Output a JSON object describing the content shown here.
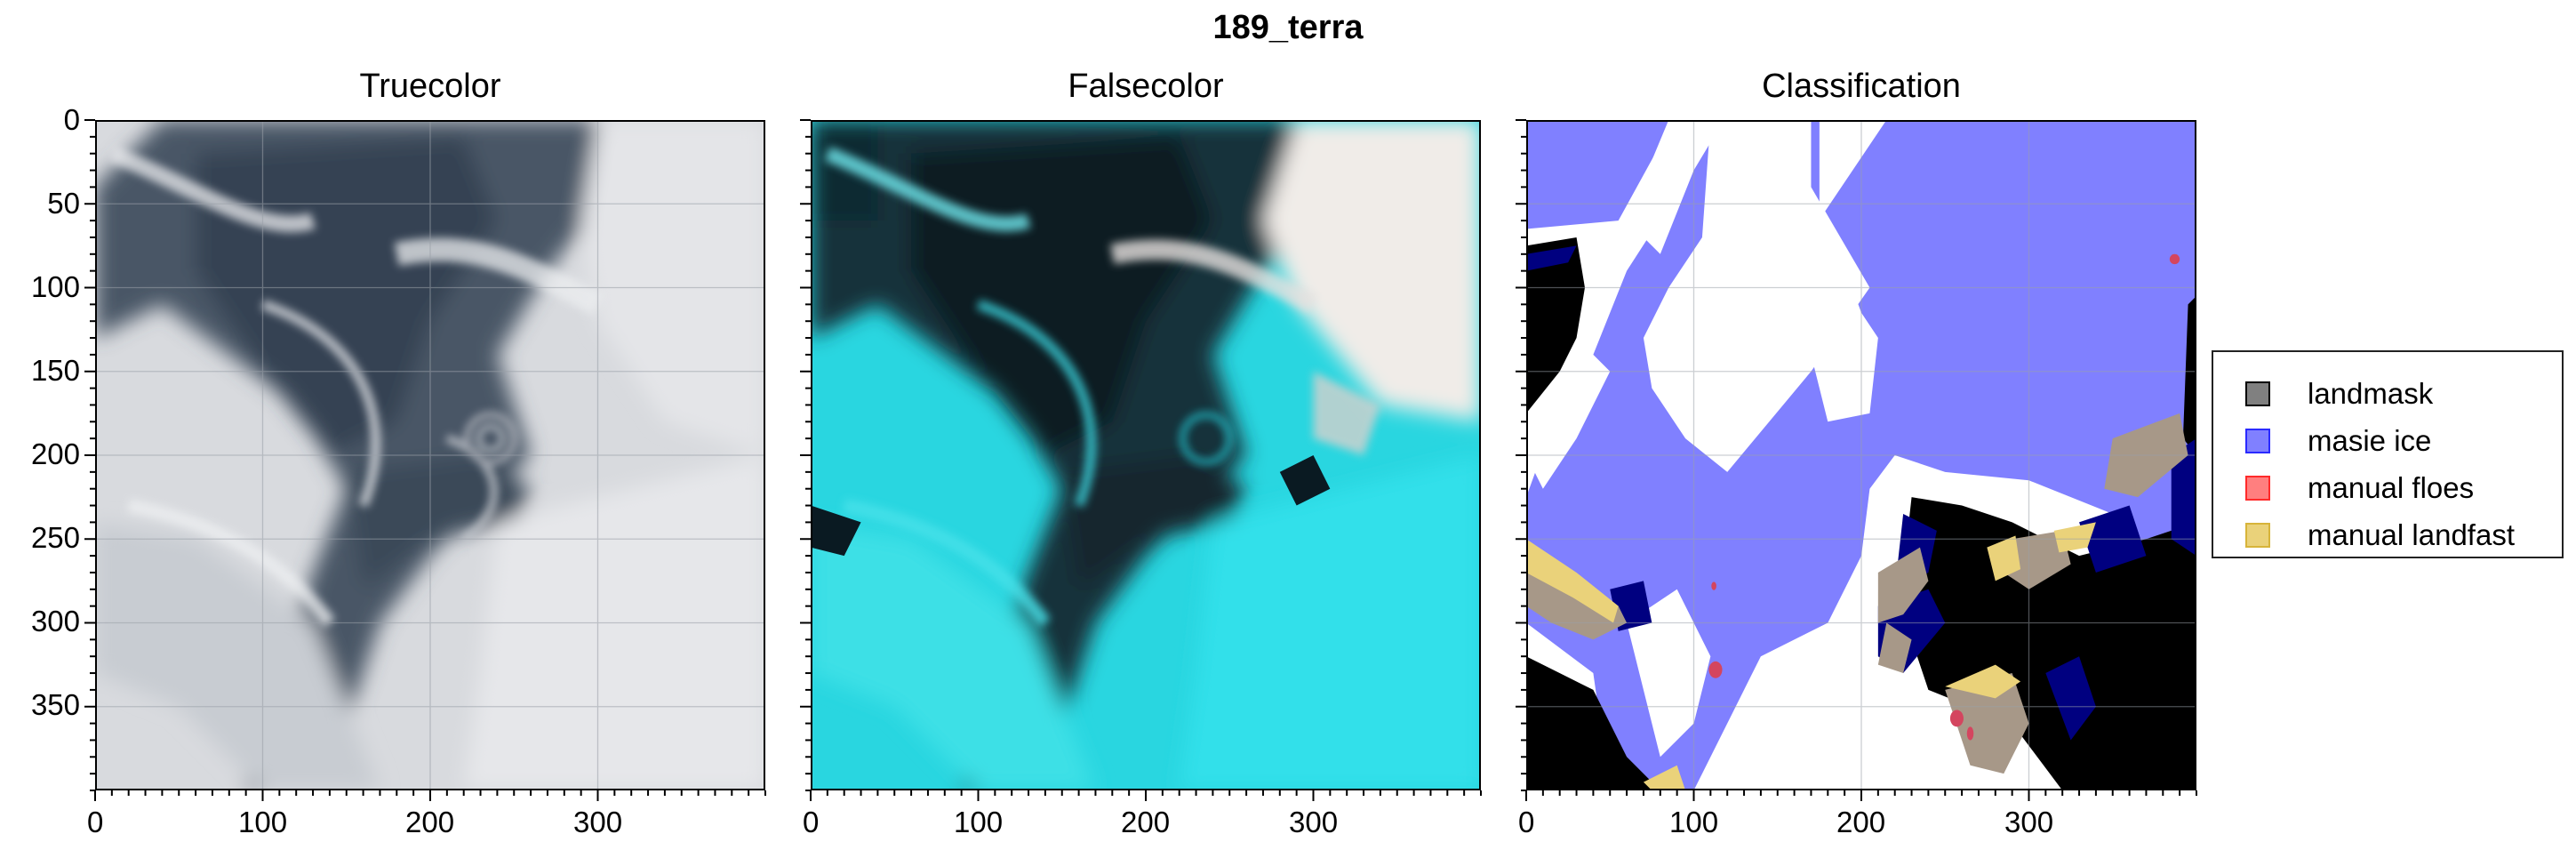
{
  "figure": {
    "suptitle": "189_terra"
  },
  "panels": [
    {
      "title": "Truecolor"
    },
    {
      "title": "Falsecolor"
    },
    {
      "title": "Classification"
    }
  ],
  "axes": {
    "y_ticks": [
      "0",
      "50",
      "100",
      "150",
      "200",
      "250",
      "300",
      "350"
    ],
    "x_ticks": [
      "0",
      "100",
      "200",
      "300"
    ]
  },
  "legend": {
    "items": [
      {
        "label": "landmask",
        "color": "#808080",
        "edge": "#000000"
      },
      {
        "label": "masie ice",
        "color": "#8080ff",
        "edge": "#2a2aff"
      },
      {
        "label": "manual floes",
        "color": "#ff7f7f",
        "edge": "#ff2a2a"
      },
      {
        "label": "manual landfast",
        "color": "#ead27a",
        "edge": "#d7b43a"
      }
    ]
  },
  "colors": {
    "masie_ice": "#8080ff",
    "landmask": "#000000",
    "dark_blue": "#000080",
    "tan": "#a79888",
    "landfast": "#ead27a",
    "floes": "#d4455f"
  }
}
